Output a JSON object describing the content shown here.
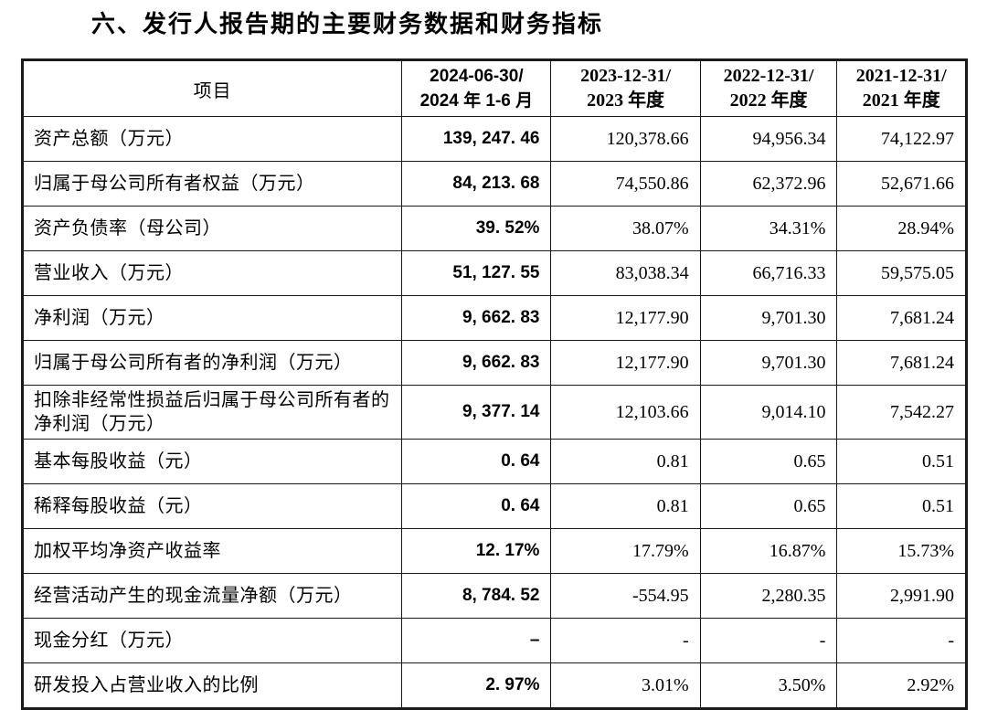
{
  "title": "六、发行人报告期的主要财务数据和财务指标",
  "colors": {
    "text": "#000000",
    "border": "#1a1a1a",
    "background": "#ffffff"
  },
  "table": {
    "item_header": "项目",
    "period_headers": [
      {
        "line1": "2024-06-30/",
        "line2": "2024 年 1-6 月"
      },
      {
        "line1": "2023-12-31/",
        "line2": "2023 年度"
      },
      {
        "line1": "2022-12-31/",
        "line2": "2022 年度"
      },
      {
        "line1": "2021-12-31/",
        "line2": "2021 年度"
      }
    ],
    "rows": [
      {
        "label": "资产总额（万元）",
        "values": [
          "139, 247. 46",
          "120,378.66",
          "94,956.34",
          "74,122.97"
        ]
      },
      {
        "label": "归属于母公司所有者权益（万元）",
        "values": [
          "84, 213. 68",
          "74,550.86",
          "62,372.96",
          "52,671.66"
        ]
      },
      {
        "label": "资产负债率（母公司）",
        "values": [
          "39. 52%",
          "38.07%",
          "34.31%",
          "28.94%"
        ]
      },
      {
        "label": "营业收入（万元）",
        "values": [
          "51, 127. 55",
          "83,038.34",
          "66,716.33",
          "59,575.05"
        ]
      },
      {
        "label": "净利润（万元）",
        "values": [
          "9, 662. 83",
          "12,177.90",
          "9,701.30",
          "7,681.24"
        ]
      },
      {
        "label": "归属于母公司所有者的净利润（万元）",
        "values": [
          "9, 662. 83",
          "12,177.90",
          "9,701.30",
          "7,681.24"
        ]
      },
      {
        "label": "扣除非经常性损益后归属于母公司所有者的净利润（万元）",
        "values": [
          "9, 377. 14",
          "12,103.66",
          "9,014.10",
          "7,542.27"
        ]
      },
      {
        "label": "基本每股收益（元）",
        "values": [
          "0. 64",
          "0.81",
          "0.65",
          "0.51"
        ]
      },
      {
        "label": "稀释每股收益（元）",
        "values": [
          "0. 64",
          "0.81",
          "0.65",
          "0.51"
        ]
      },
      {
        "label": "加权平均净资产收益率",
        "values": [
          "12. 17%",
          "17.79%",
          "16.87%",
          "15.73%"
        ]
      },
      {
        "label": "经营活动产生的现金流量净额（万元）",
        "values": [
          "8, 784. 52",
          "-554.95",
          "2,280.35",
          "2,991.90"
        ]
      },
      {
        "label": "现金分红（万元）",
        "values": [
          "–",
          "-",
          "-",
          "-"
        ]
      },
      {
        "label": "研发投入占营业收入的比例",
        "values": [
          "2. 97%",
          "3.01%",
          "3.50%",
          "2.92%"
        ]
      }
    ]
  }
}
